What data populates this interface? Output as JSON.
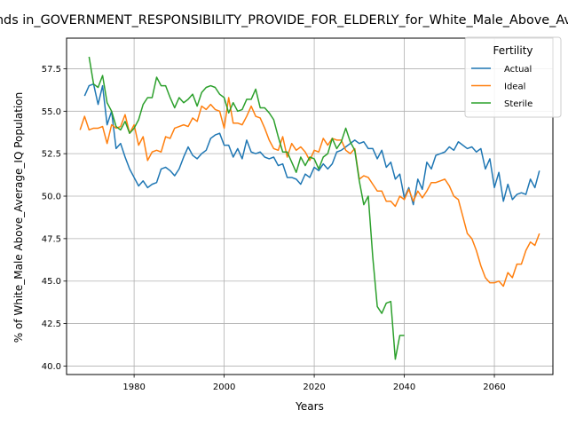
{
  "chart_data": {
    "type": "line",
    "title": "Trends in_GOVERNMENT_RESPONSIBILITY_PROVIDE_FOR_ELDERLY_for_White_Male_Above_Average_IQ",
    "xlabel": "Years",
    "ylabel": "% of White_Male Above_Average_IQ Population",
    "xlim": [
      1965,
      2073
    ],
    "ylim": [
      39.5,
      59.3
    ],
    "x_ticks": [
      1980,
      2000,
      2020,
      2040,
      2060
    ],
    "y_ticks": [
      40.0,
      42.5,
      45.0,
      47.5,
      50.0,
      52.5,
      55.0,
      57.5
    ],
    "x_tick_labels": [
      "1980",
      "2000",
      "2020",
      "2040",
      "2060"
    ],
    "y_tick_labels": [
      "40.0",
      "42.5",
      "45.0",
      "47.5",
      "50.0",
      "52.5",
      "55.0",
      "57.5"
    ],
    "grid": true,
    "legend": {
      "title": "Fertility",
      "position": "top-right"
    },
    "series": [
      {
        "name": "Actual",
        "color": "#1f77b4",
        "x": [
          1969,
          1970,
          1971,
          1972,
          1973,
          1974,
          1975,
          1976,
          1977,
          1978,
          1979,
          1980,
          1981,
          1982,
          1983,
          1984,
          1985,
          1986,
          1987,
          1988,
          1989,
          1990,
          1991,
          1992,
          1993,
          1994,
          1995,
          1996,
          1997,
          1998,
          1999,
          2000,
          2001,
          2002,
          2003,
          2004,
          2005,
          2006,
          2007,
          2008,
          2009,
          2010,
          2011,
          2012,
          2013,
          2014,
          2015,
          2016,
          2017,
          2018,
          2019,
          2020,
          2021,
          2022,
          2023,
          2024,
          2025,
          2026,
          2027,
          2028,
          2029,
          2030,
          2031,
          2032,
          2033,
          2034,
          2035,
          2036,
          2037,
          2038,
          2039,
          2040,
          2041,
          2042,
          2043,
          2044,
          2045,
          2046,
          2047,
          2048,
          2049,
          2050,
          2051,
          2052,
          2053,
          2054,
          2055,
          2056,
          2057,
          2058,
          2059,
          2060,
          2061,
          2062,
          2063,
          2064,
          2065,
          2066,
          2067,
          2068,
          2069,
          2070
        ],
        "values": [
          55.9,
          56.5,
          56.6,
          55.4,
          56.5,
          54.2,
          55.0,
          52.8,
          53.1,
          52.3,
          51.6,
          51.1,
          50.6,
          50.9,
          50.5,
          50.7,
          50.8,
          51.6,
          51.7,
          51.5,
          51.2,
          51.6,
          52.3,
          52.9,
          52.4,
          52.2,
          52.5,
          52.7,
          53.4,
          53.6,
          53.7,
          53.0,
          53.0,
          52.3,
          52.8,
          52.2,
          53.3,
          52.6,
          52.5,
          52.6,
          52.3,
          52.2,
          52.3,
          51.8,
          51.9,
          51.1,
          51.1,
          51.0,
          50.7,
          51.3,
          51.1,
          51.7,
          51.5,
          51.9,
          51.6,
          51.9,
          52.6,
          52.7,
          52.9,
          53.1,
          53.3,
          53.1,
          53.2,
          52.8,
          52.8,
          52.2,
          52.7,
          51.7,
          52.0,
          51.0,
          51.3,
          49.9,
          50.5,
          49.5,
          51.0,
          50.4,
          52.0,
          51.6,
          52.4,
          52.5,
          52.6,
          52.9,
          52.7,
          53.2,
          53.0,
          52.8,
          52.9,
          52.6,
          52.8,
          51.6,
          52.2,
          50.5,
          51.4,
          49.7,
          50.7,
          49.8,
          50.1,
          50.2,
          50.1,
          51.0,
          50.5,
          51.5
        ]
      },
      {
        "name": "Ideal",
        "color": "#ff7f0e",
        "x": [
          1968,
          1969,
          1970,
          1971,
          1972,
          1973,
          1974,
          1975,
          1976,
          1977,
          1978,
          1979,
          1980,
          1981,
          1982,
          1983,
          1984,
          1985,
          1986,
          1987,
          1988,
          1989,
          1990,
          1991,
          1992,
          1993,
          1994,
          1995,
          1996,
          1997,
          1998,
          1999,
          2000,
          2001,
          2002,
          2003,
          2004,
          2005,
          2006,
          2007,
          2008,
          2009,
          2010,
          2011,
          2012,
          2013,
          2014,
          2015,
          2016,
          2017,
          2018,
          2019,
          2020,
          2021,
          2022,
          2023,
          2024,
          2025,
          2026,
          2027,
          2028,
          2029,
          2030,
          2031,
          2032,
          2033,
          2034,
          2035,
          2036,
          2037,
          2038,
          2039,
          2040,
          2041,
          2042,
          2043,
          2044,
          2045,
          2046,
          2047,
          2048,
          2049,
          2050,
          2051,
          2052,
          2053,
          2054,
          2055,
          2056,
          2057,
          2058,
          2059,
          2060,
          2061,
          2062,
          2063,
          2064,
          2065,
          2066,
          2067,
          2068,
          2069,
          2070
        ],
        "values": [
          53.9,
          54.7,
          53.9,
          54.0,
          54.0,
          54.1,
          53.1,
          54.2,
          54.0,
          54.1,
          54.8,
          53.7,
          54.2,
          53.0,
          53.5,
          52.1,
          52.6,
          52.7,
          52.6,
          53.5,
          53.4,
          54.0,
          54.1,
          54.2,
          54.1,
          54.6,
          54.4,
          55.3,
          55.1,
          55.4,
          55.1,
          55.0,
          54.0,
          55.8,
          54.3,
          54.3,
          54.2,
          54.7,
          55.3,
          54.7,
          54.6,
          54.0,
          53.3,
          52.8,
          52.7,
          53.5,
          52.3,
          53.1,
          52.7,
          52.9,
          52.6,
          52.1,
          52.7,
          52.6,
          53.4,
          53.0,
          53.4,
          53.3,
          53.3,
          52.7,
          52.5,
          52.8,
          51.0,
          51.2,
          51.1,
          50.7,
          50.3,
          50.3,
          49.7,
          49.7,
          49.4,
          50.0,
          49.8,
          50.4,
          49.7,
          50.3,
          49.9,
          50.3,
          50.8,
          50.8,
          50.9,
          51.0,
          50.6,
          50.0,
          49.8,
          48.8,
          47.8,
          47.5,
          46.8,
          45.9,
          45.2,
          44.9,
          44.9,
          45.0,
          44.7,
          45.5,
          45.2,
          46.0,
          46.0,
          46.8,
          47.3,
          47.1,
          47.8
        ]
      },
      {
        "name": "Sterile",
        "color": "#2ca02c",
        "x": [
          1970,
          1971,
          1972,
          1973,
          1974,
          1975,
          1976,
          1977,
          1978,
          1979,
          1980,
          1981,
          1982,
          1983,
          1984,
          1985,
          1986,
          1987,
          1988,
          1989,
          1990,
          1991,
          1992,
          1993,
          1994,
          1995,
          1996,
          1997,
          1998,
          1999,
          2000,
          2001,
          2002,
          2003,
          2004,
          2005,
          2006,
          2007,
          2008,
          2009,
          2010,
          2011,
          2012,
          2013,
          2014,
          2015,
          2016,
          2017,
          2018,
          2019,
          2020,
          2021,
          2022,
          2023,
          2024,
          2025,
          2026,
          2027,
          2028,
          2029,
          2030,
          2031,
          2032,
          2033,
          2034,
          2035,
          2036,
          2037,
          2038,
          2039,
          2040
        ],
        "values": [
          58.2,
          56.6,
          56.4,
          57.1,
          55.5,
          55.0,
          54.1,
          53.9,
          54.4,
          53.7,
          54.0,
          54.5,
          55.4,
          55.8,
          55.8,
          57.0,
          56.5,
          56.5,
          55.8,
          55.2,
          55.8,
          55.5,
          55.7,
          56.0,
          55.3,
          56.1,
          56.4,
          56.5,
          56.4,
          56.0,
          55.8,
          54.9,
          55.5,
          55.0,
          55.1,
          55.7,
          55.7,
          56.3,
          55.2,
          55.2,
          54.9,
          54.5,
          53.5,
          52.6,
          52.6,
          52.0,
          51.4,
          52.3,
          51.8,
          52.3,
          52.2,
          51.6,
          52.3,
          52.5,
          53.4,
          52.8,
          53.2,
          54.0,
          53.2,
          52.7,
          50.9,
          49.5,
          50.0,
          46.4,
          43.5,
          43.1,
          43.7,
          43.8,
          40.4,
          41.8,
          41.8
        ]
      }
    ]
  }
}
